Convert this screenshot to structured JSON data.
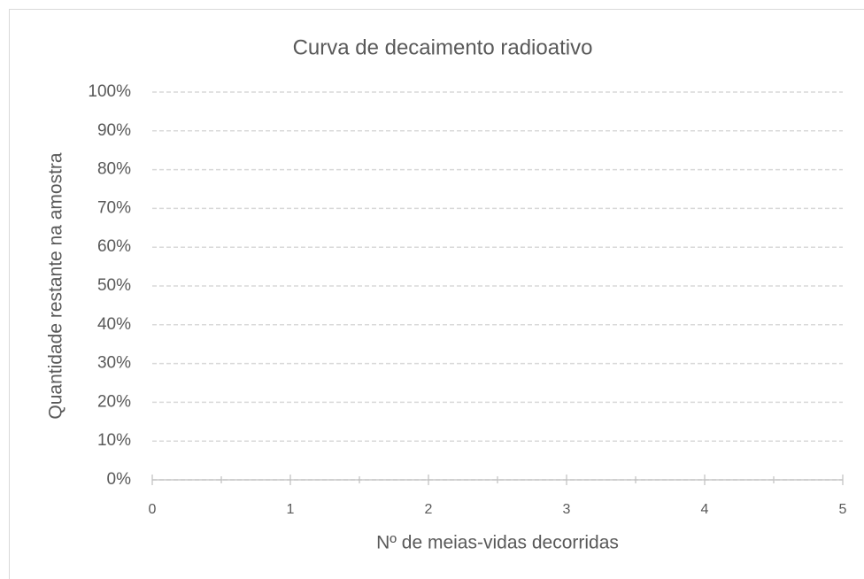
{
  "chart_data": {
    "type": "scatter",
    "title": "Curva de decaimento radioativo",
    "x_label": "Nº de meias-vidas decorridas",
    "y_label": "Quantidade restante na amostra",
    "xlim": [
      0,
      5
    ],
    "xticks": [
      0,
      1,
      2,
      3,
      4,
      5
    ],
    "xminorticks": [
      0.5,
      1.5,
      2.5,
      3.5,
      4.5
    ],
    "ylim": [
      0,
      100
    ],
    "yticks": [
      {
        "value": 0,
        "label": "0%"
      },
      {
        "value": 10,
        "label": "10%"
      },
      {
        "value": 20,
        "label": "20%"
      },
      {
        "value": 30,
        "label": "30%"
      },
      {
        "value": 40,
        "label": "40%"
      },
      {
        "value": 50,
        "label": "50%"
      },
      {
        "value": 60,
        "label": "60%"
      },
      {
        "value": 70,
        "label": "70%"
      },
      {
        "value": 80,
        "label": "80%"
      },
      {
        "value": 90,
        "label": "90%"
      },
      {
        "value": 100,
        "label": "100%"
      }
    ],
    "grid": true
  }
}
